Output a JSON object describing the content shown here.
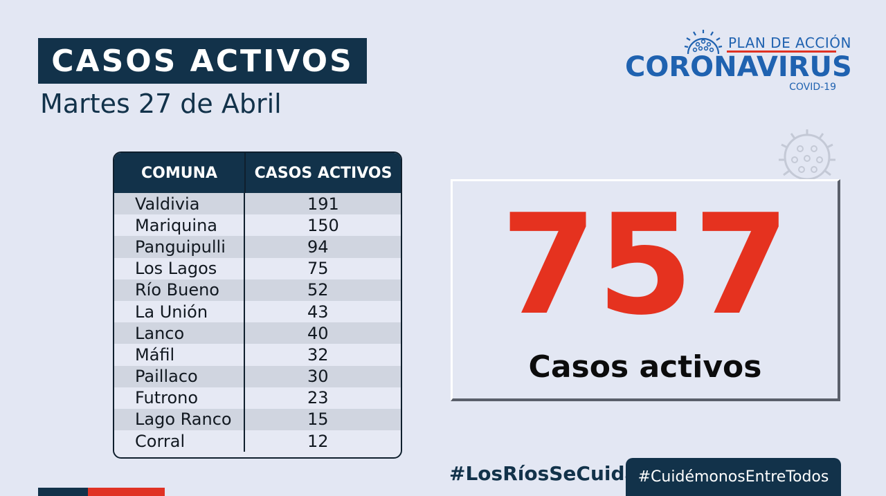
{
  "header": {
    "title": "CASOS ACTIVOS",
    "date": "Martes 27 de Abril"
  },
  "logo": {
    "top": "PLAN DE ACCIÓN",
    "main": "CORONAVIRUS",
    "sub": "COVID-19",
    "icon": "virus-icon"
  },
  "table": {
    "headers": [
      "COMUNA",
      "CASOS ACTIVOS"
    ],
    "rows": [
      {
        "comuna": "Valdivia",
        "casos": "191"
      },
      {
        "comuna": "Mariquina",
        "casos": "150"
      },
      {
        "comuna": "Panguipulli",
        "casos": "94"
      },
      {
        "comuna": "Los Lagos",
        "casos": "75"
      },
      {
        "comuna": "Río Bueno",
        "casos": "52"
      },
      {
        "comuna": "La Unión",
        "casos": "43"
      },
      {
        "comuna": "Lanco",
        "casos": "40"
      },
      {
        "comuna": "Máfil",
        "casos": "32"
      },
      {
        "comuna": "Paillaco",
        "casos": "30"
      },
      {
        "comuna": "Futrono",
        "casos": "23"
      },
      {
        "comuna": "Lago Ranco",
        "casos": "15"
      },
      {
        "comuna": "Corral",
        "casos": "12"
      }
    ]
  },
  "summary": {
    "total": "757",
    "label": "Casos activos"
  },
  "footer": {
    "hashtag1": "#LosRíosSeCuida",
    "hashtag2": "#CuidémonosEntreTodos"
  },
  "colors": {
    "navy": "#12324a",
    "red": "#e5321f",
    "blue": "#1f62b0",
    "background": "#e3e7f3"
  }
}
